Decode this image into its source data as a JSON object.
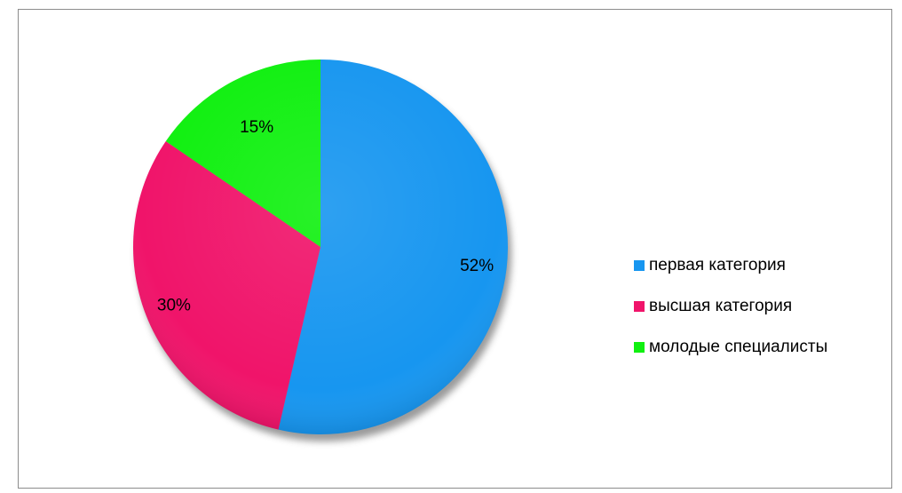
{
  "chart_data": {
    "type": "pie",
    "title": "",
    "slices": [
      {
        "label": "первая категория",
        "value": 52,
        "display": "52%",
        "color": "#1796F0"
      },
      {
        "label": "высшая категория",
        "value": 30,
        "display": "30%",
        "color": "#F0146A"
      },
      {
        "label": "молодые специалисты",
        "value": 15,
        "display": "15%",
        "color": "#10F010"
      }
    ],
    "start_angle_deg": 0,
    "direction": "clockwise",
    "legend_position": "right",
    "style": "3d-shadow"
  }
}
